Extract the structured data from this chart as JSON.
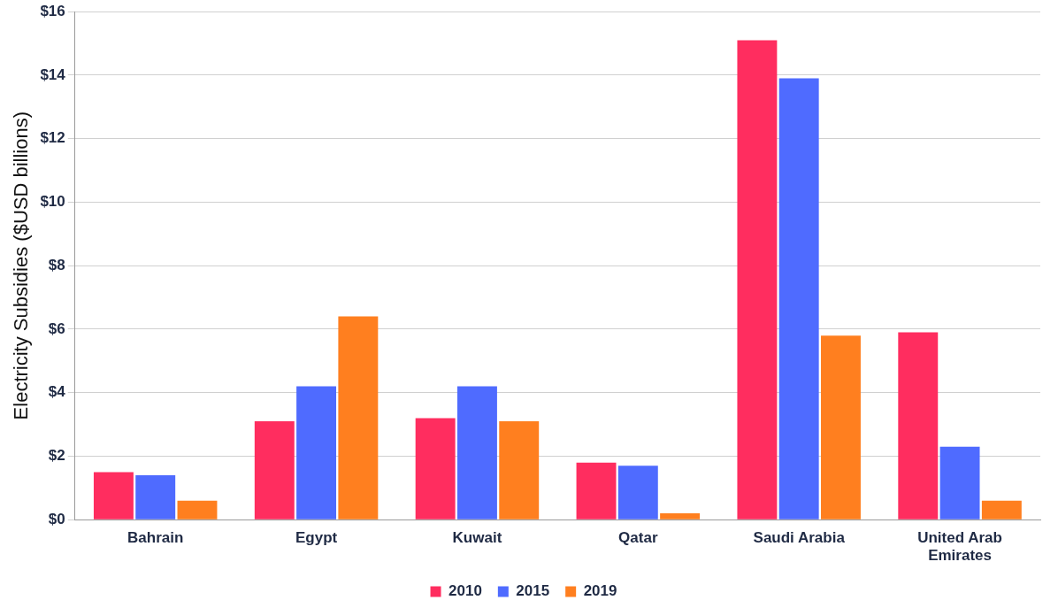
{
  "chart_data": {
    "type": "bar",
    "ylabel": "Electricity Subsidies ($USD billions)",
    "categories": [
      "Bahrain",
      "Egypt",
      "Kuwait",
      "Qatar",
      "Saudi Arabia",
      "United Arab Emirates"
    ],
    "series": [
      {
        "name": "2010",
        "color": "#ff2d5f",
        "values": [
          1.5,
          3.1,
          3.2,
          1.8,
          15.1,
          5.9
        ]
      },
      {
        "name": "2015",
        "color": "#4f6bff",
        "values": [
          1.4,
          4.2,
          4.2,
          1.7,
          13.9,
          2.3
        ]
      },
      {
        "name": "2019",
        "color": "#ff7f1f",
        "values": [
          0.6,
          6.4,
          3.1,
          0.2,
          5.8,
          0.6
        ]
      }
    ],
    "ylim": [
      0,
      16
    ],
    "yticks": [
      {
        "value": 0,
        "label": "$0"
      },
      {
        "value": 2,
        "label": "$2"
      },
      {
        "value": 4,
        "label": "$4"
      },
      {
        "value": 6,
        "label": "$6"
      },
      {
        "value": 8,
        "label": "$8"
      },
      {
        "value": 10,
        "label": "$10"
      },
      {
        "value": 12,
        "label": "$12"
      },
      {
        "value": 14,
        "label": "$14"
      },
      {
        "value": 16,
        "label": "$16"
      }
    ],
    "grid": "y",
    "legend": "bottom"
  }
}
